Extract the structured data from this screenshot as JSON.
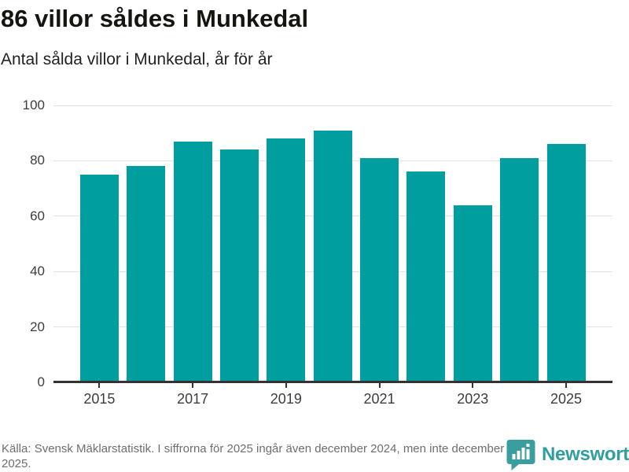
{
  "header": {
    "title": "86 villor såldes i Munkedal",
    "subtitle": "Antal sålda villor i Munkedal, år för år"
  },
  "chart_data": {
    "type": "bar",
    "categories": [
      "2015",
      "2016",
      "2017",
      "2018",
      "2019",
      "2020",
      "2021",
      "2022",
      "2023",
      "2024",
      "2025"
    ],
    "values": [
      75,
      78,
      87,
      84,
      88,
      91,
      81,
      76,
      64,
      81,
      86
    ],
    "title": "86 villor såldes i Munkedal",
    "subtitle": "Antal sålda villor i Munkedal, år för år",
    "xlabel": "",
    "ylabel": "",
    "ylim": [
      0,
      100
    ],
    "yticks": [
      0,
      20,
      40,
      60,
      80,
      100
    ],
    "xtick_labels": [
      "2015",
      "2017",
      "2019",
      "2021",
      "2023",
      "2025"
    ],
    "bar_color": "#009e9e",
    "grid": "horizontal",
    "legend_position": "none"
  },
  "footer": {
    "source": "Källa: Svensk Mäklarstatistik. I siffrorna för 2025 ingår även december 2024, men inte december 2025.",
    "brand": "Newsworthy"
  },
  "colors": {
    "bar": "#009e9e",
    "title_text": "#15150f",
    "subtitle_text": "#222222",
    "axis_text": "#3d3d3d",
    "gridline": "#e2e2e2",
    "axis_line": "#333333",
    "footer_text": "#6e6e6e",
    "brand_teal": "#3b9e9e"
  },
  "icons": {
    "brand_icon": "newsworthy-speech-bubble-bar-chart-icon"
  }
}
